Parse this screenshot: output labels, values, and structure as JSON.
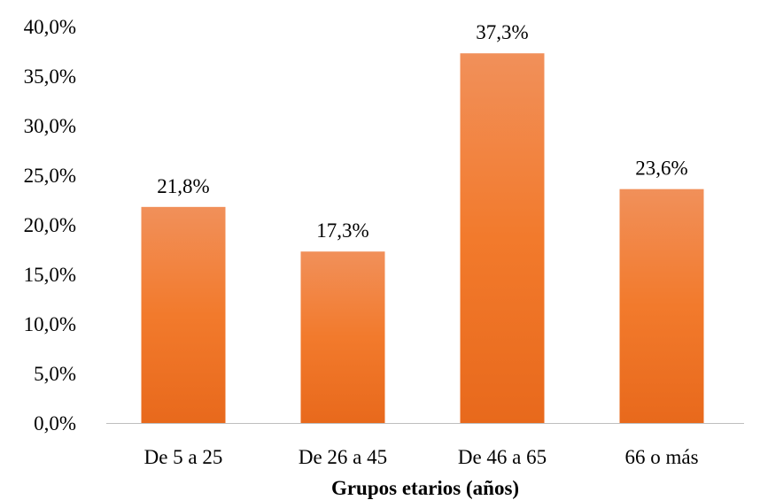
{
  "chart_data": {
    "type": "bar",
    "categories": [
      "De 5 a 25",
      "De 26 a 45",
      "De 46 a 65",
      "66 o más"
    ],
    "values": [
      21.8,
      17.3,
      37.3,
      23.6
    ],
    "data_labels": [
      "21,8%",
      "17,3%",
      "37,3%",
      "23,6%"
    ],
    "yticks": [
      "0,0%",
      "5,0%",
      "10,0%",
      "15,0%",
      "20,0%",
      "25,0%",
      "30,0%",
      "35,0%",
      "40,0%"
    ],
    "ylim": [
      0,
      40
    ],
    "ystep": 5,
    "title": "",
    "xlabel": "Grupos etarios (años)",
    "ylabel": "",
    "grid": false,
    "legend": "none",
    "colors": {
      "bar_top": "#f1905a",
      "bar_mid": "#f27a2c",
      "bar_bottom": "#e8691c",
      "axis": "#bfbfbf"
    }
  }
}
